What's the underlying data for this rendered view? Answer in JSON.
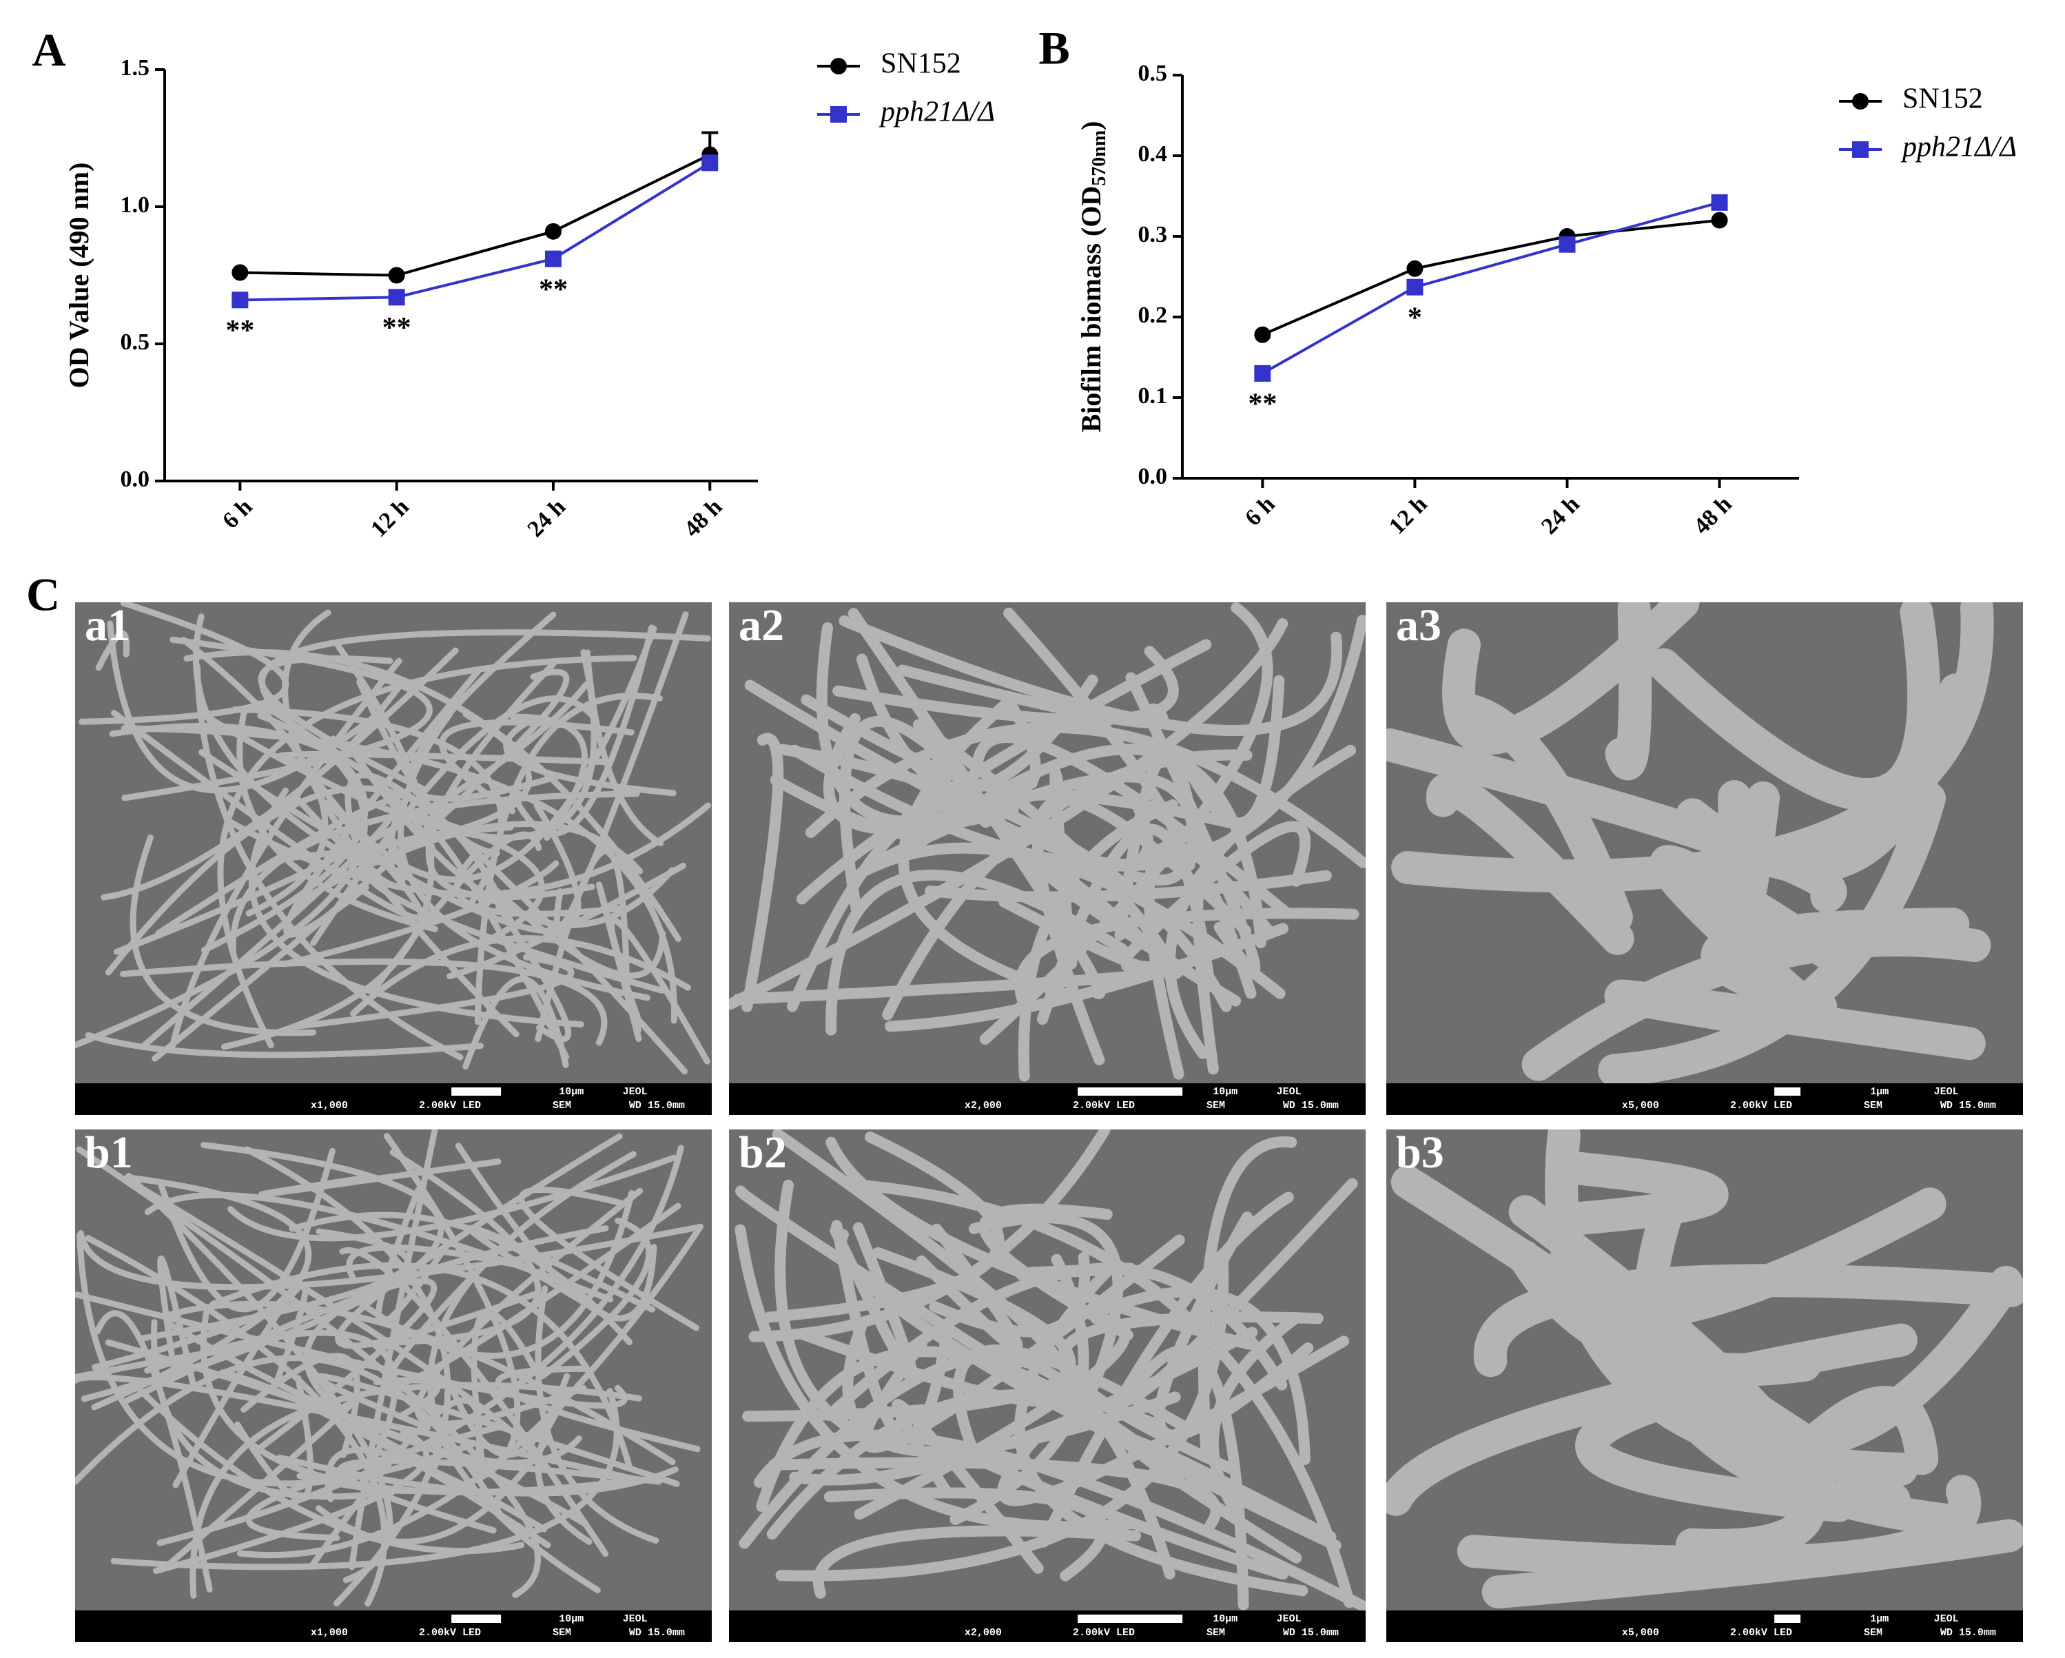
{
  "chart_data": [
    {
      "type": "line",
      "panel_label": "A",
      "y_label": "OD Value (490 nm)",
      "categories": [
        "6 h",
        "12 h",
        "24 h",
        "48 h"
      ],
      "series": [
        {
          "name": "SN152",
          "color": "#000000",
          "marker": "circle",
          "values": [
            0.76,
            0.75,
            0.91,
            1.19
          ],
          "errors": [
            null,
            null,
            null,
            0.08
          ]
        },
        {
          "name": "pph21Δ/Δ",
          "color": "#3333cc",
          "marker": "square",
          "values": [
            0.66,
            0.67,
            0.81,
            1.16
          ]
        }
      ],
      "annotations": [
        {
          "text": "**",
          "category": "6 h"
        },
        {
          "text": "**",
          "category": "12 h"
        },
        {
          "text": "**",
          "category": "24 h"
        }
      ],
      "ylim": [
        0,
        1.5
      ],
      "yticks": [
        {
          "value": 0,
          "label": "0.0"
        },
        0.5,
        {
          "value": 1,
          "label": "1.0"
        },
        1.5
      ]
    },
    {
      "type": "line",
      "panel_label": "B",
      "y_label_parts": [
        "Biofilm biomass (OD",
        "570nm",
        ")"
      ],
      "categories": [
        "6 h",
        "12 h",
        "24 h",
        "48 h"
      ],
      "series": [
        {
          "name": "SN152",
          "color": "#000000",
          "marker": "circle",
          "values": [
            0.178,
            0.26,
            0.3,
            0.32
          ]
        },
        {
          "name": "pph21Δ/Δ",
          "color": "#3333cc",
          "marker": "square",
          "values": [
            0.13,
            0.237,
            0.29,
            0.342
          ]
        }
      ],
      "annotations": [
        {
          "text": "**",
          "category": "6 h"
        },
        {
          "text": "*",
          "category": "12 h"
        }
      ],
      "ylim": [
        0,
        0.5
      ],
      "yticks": [
        {
          "value": 0,
          "label": "0.0"
        },
        0.1,
        0.2,
        0.3,
        0.4,
        0.5
      ]
    }
  ],
  "image_panel_label": "C",
  "panels": [
    {
      "label": "a1",
      "magnification": "x1,000",
      "voltage": "2.00kV LED",
      "mode": "SEM",
      "wd": "WD 15.0mm",
      "scale": "10μm",
      "maker": "JEOL"
    },
    {
      "label": "a2",
      "magnification": "x2,000",
      "voltage": "2.00kV LED",
      "mode": "SEM",
      "wd": "WD 15.0mm",
      "scale": "10μm",
      "maker": "JEOL"
    },
    {
      "label": "a3",
      "magnification": "x5,000",
      "voltage": "2.00kV LED",
      "mode": "SEM",
      "wd": "WD 15.0mm",
      "scale": "1μm",
      "maker": "JEOL"
    },
    {
      "label": "b1",
      "magnification": "x1,000",
      "voltage": "2.00kV LED",
      "mode": "SEM",
      "wd": "WD 15.0mm",
      "scale": "10μm",
      "maker": "JEOL"
    },
    {
      "label": "b2",
      "magnification": "x2,000",
      "voltage": "2.00kV LED",
      "mode": "SEM",
      "wd": "WD 15.0mm",
      "scale": "10μm",
      "maker": "JEOL"
    },
    {
      "label": "b3",
      "magnification": "x5,000",
      "voltage": "2.00kV LED",
      "mode": "SEM",
      "wd": "WD 15.0mm",
      "scale": "1μm",
      "maker": "JEOL"
    }
  ]
}
